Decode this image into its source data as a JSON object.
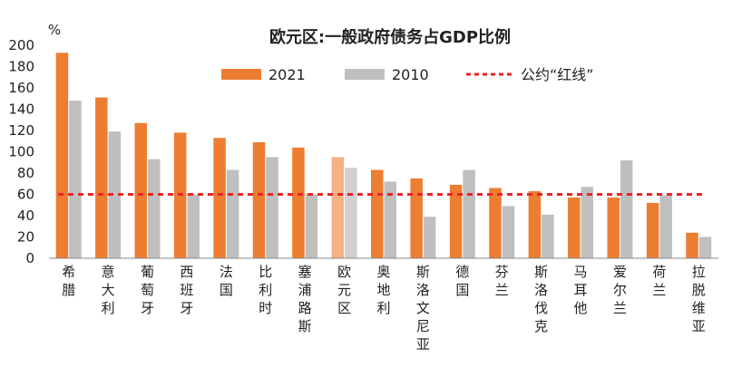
{
  "chart_data": {
    "type": "bar",
    "title": "欧元区:一般政府债务占GDP比例",
    "ylabel": "%",
    "ylim": [
      0,
      200
    ],
    "yticks": [
      0,
      20,
      40,
      60,
      80,
      100,
      120,
      140,
      160,
      180,
      200
    ],
    "categories": [
      "希腊",
      "意大利",
      "葡萄牙",
      "西班牙",
      "法国",
      "比利时",
      "塞浦路斯",
      "欧元区",
      "奥地利",
      "斯洛文尼亚",
      "德国",
      "芬兰",
      "斯洛伐克",
      "马耳他",
      "爱尔兰",
      "荷兰",
      "拉脱维亚"
    ],
    "highlight_category": "欧元区",
    "series": [
      {
        "name": "2021",
        "color": "#ed7d31",
        "highlight_color": "#f4b183",
        "values": [
          193,
          151,
          127,
          118,
          113,
          109,
          104,
          95,
          83,
          75,
          69,
          66,
          63,
          57,
          57,
          52,
          24
        ]
      },
      {
        "name": "2010",
        "color": "#bfbfbf",
        "highlight_color": "#d0d0d0",
        "values": [
          148,
          119,
          93,
          60,
          83,
          95,
          60,
          85,
          72,
          39,
          83,
          49,
          41,
          67,
          92,
          59,
          20
        ]
      }
    ],
    "reference_line": {
      "name": "公约“红线”",
      "value": 60,
      "color": "#e8242a"
    },
    "legend_position": "top"
  }
}
